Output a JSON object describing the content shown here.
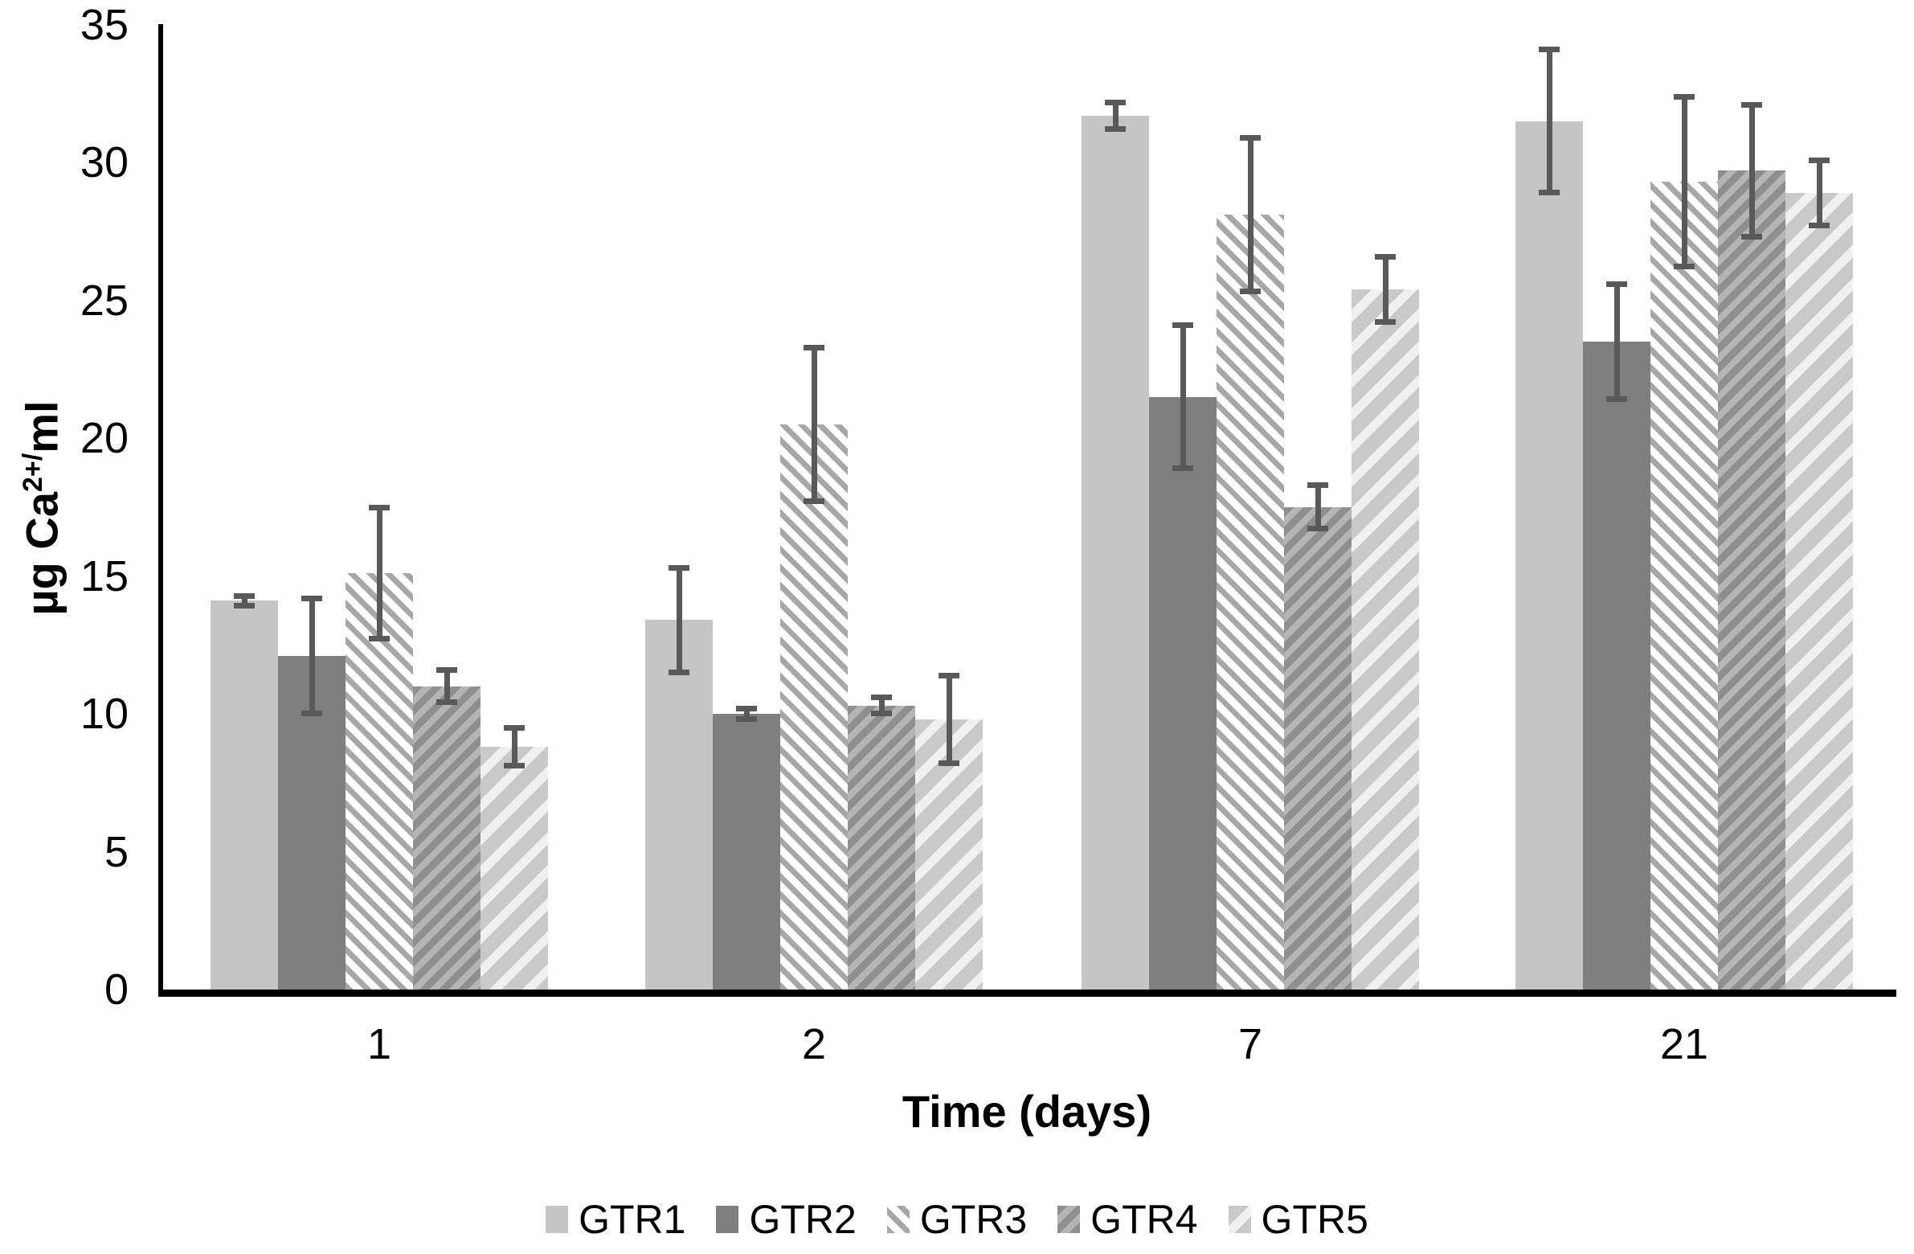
{
  "figure": {
    "kind": "grouped-bar-chart-with-error-bars",
    "background": "#ffffff",
    "axis_color": "#000000",
    "error_bar_color": "#595959"
  },
  "chart_data": {
    "type": "bar",
    "title": "",
    "xlabel": "Time (days)",
    "ylabel": "µg Ca2+/ml",
    "ylabel_parts": {
      "prefix": "µg Ca",
      "superscript": "2+/",
      "suffix": "ml"
    },
    "categories": [
      "1",
      "2",
      "7",
      "21"
    ],
    "series": [
      {
        "name": "GTR1",
        "pattern": "solid",
        "fill": "#c5c5c5",
        "values": [
          14.1,
          13.4,
          31.7,
          31.5
        ],
        "errors": [
          0.2,
          1.9,
          0.5,
          2.6
        ]
      },
      {
        "name": "GTR2",
        "pattern": "solid",
        "fill": "#7f7f7f",
        "values": [
          12.1,
          10.0,
          21.5,
          23.5
        ],
        "errors": [
          2.1,
          0.2,
          2.6,
          2.1
        ]
      },
      {
        "name": "GTR3",
        "pattern": "hatch-thin-back",
        "stripe": "#a7a7a7",
        "bg": "#ffffff",
        "values": [
          15.1,
          20.5,
          28.1,
          29.3
        ],
        "errors": [
          2.4,
          2.8,
          2.8,
          3.1
        ]
      },
      {
        "name": "GTR4",
        "pattern": "hatch-dense-fwd",
        "stripe": "#8f8f8f",
        "bg": "#b5b5b5",
        "values": [
          11.0,
          10.3,
          17.5,
          29.7
        ],
        "errors": [
          0.6,
          0.3,
          0.8,
          2.4
        ]
      },
      {
        "name": "GTR5",
        "pattern": "hatch-wide-fwd",
        "stripe": "#c9c9c9",
        "bg": "#f0f0f0",
        "values": [
          8.8,
          9.8,
          25.4,
          28.9
        ],
        "errors": [
          0.7,
          1.6,
          1.2,
          1.2
        ]
      }
    ],
    "y_axis": {
      "min": 0,
      "max": 35,
      "tick_interval": 5,
      "ticks": [
        "0",
        "5",
        "10",
        "15",
        "20",
        "25",
        "30",
        "35"
      ]
    },
    "grid": "off",
    "legend_position": "bottom"
  }
}
